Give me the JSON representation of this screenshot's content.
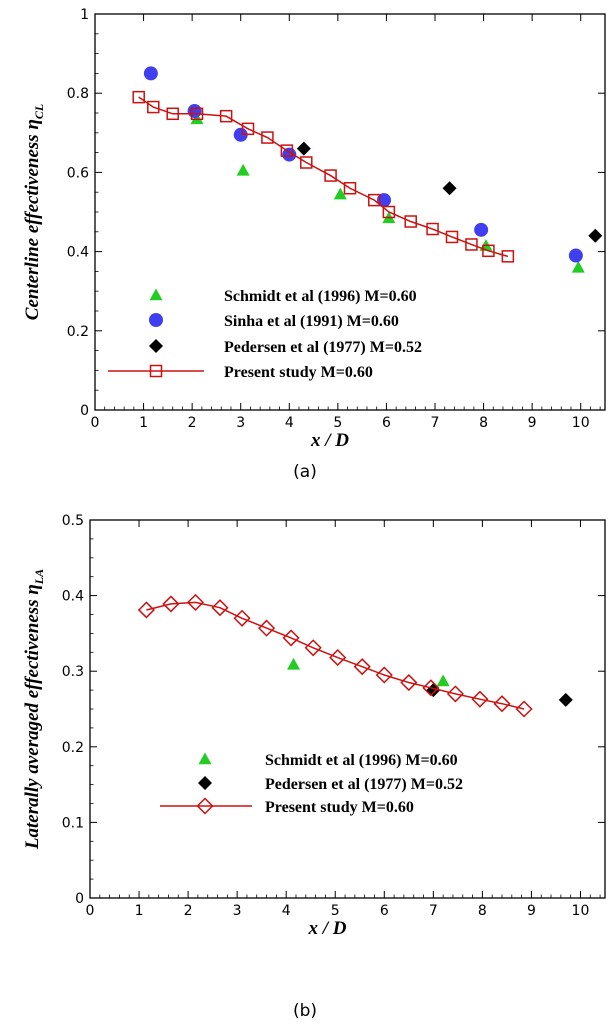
{
  "chart_data": [
    {
      "type": "scatter",
      "panel_label": "(a)",
      "xlabel": "x / D",
      "ylabel": "Centerline effectiveness η",
      "ylabel_sub": "CL",
      "xlim": [
        0,
        10.5
      ],
      "ylim": [
        0,
        1
      ],
      "xticks": [
        "0",
        "1",
        "2",
        "3",
        "4",
        "5",
        "6",
        "7",
        "8",
        "9",
        "10"
      ],
      "yticks": [
        "0",
        "0.2",
        "0.4",
        "0.6",
        "0.8",
        "1"
      ],
      "legend_position": "bottom-center",
      "series": [
        {
          "name": "Schmidt et al (1996) M=0.60",
          "marker": "triangle",
          "color": "#22cc22",
          "points": [
            [
              2.1,
              0.735
            ],
            [
              3.05,
              0.605
            ],
            [
              5.05,
              0.545
            ],
            [
              6.05,
              0.485
            ],
            [
              8.05,
              0.415
            ],
            [
              9.95,
              0.36
            ]
          ]
        },
        {
          "name": "Sinha et al (1991) M=0.60",
          "marker": "circle",
          "color": "#3f3ff0",
          "points": [
            [
              1.15,
              0.85
            ],
            [
              2.05,
              0.755
            ],
            [
              3.0,
              0.695
            ],
            [
              4.0,
              0.645
            ],
            [
              5.95,
              0.53
            ],
            [
              7.95,
              0.455
            ],
            [
              9.9,
              0.39
            ]
          ]
        },
        {
          "name": "Pedersen et al (1977) M=0.52",
          "marker": "diamond",
          "color": "#000000",
          "points": [
            [
              4.3,
              0.66
            ],
            [
              7.3,
              0.56
            ],
            [
              10.3,
              0.44
            ]
          ]
        },
        {
          "name": "Present study M=0.60",
          "marker": "open-square-line",
          "color": "#cc1111",
          "points": [
            [
              0.9,
              0.79
            ],
            [
              1.2,
              0.765
            ],
            [
              1.6,
              0.748
            ],
            [
              2.1,
              0.748
            ],
            [
              2.7,
              0.742
            ],
            [
              3.15,
              0.71
            ],
            [
              3.55,
              0.688
            ],
            [
              3.95,
              0.655
            ],
            [
              4.35,
              0.625
            ],
            [
              4.85,
              0.592
            ],
            [
              5.25,
              0.56
            ],
            [
              5.75,
              0.53
            ],
            [
              6.05,
              0.5
            ],
            [
              6.5,
              0.476
            ],
            [
              6.95,
              0.457
            ],
            [
              7.35,
              0.437
            ],
            [
              7.75,
              0.418
            ],
            [
              8.1,
              0.402
            ],
            [
              8.5,
              0.388
            ]
          ]
        }
      ]
    },
    {
      "type": "scatter",
      "panel_label": "(b)",
      "xlabel": "x / D",
      "ylabel": "Laterally averaged effectiveness η",
      "ylabel_sub": "LA",
      "xlim": [
        0,
        10.5
      ],
      "ylim": [
        0,
        0.5
      ],
      "xticks": [
        "0",
        "1",
        "2",
        "3",
        "4",
        "5",
        "6",
        "7",
        "8",
        "9",
        "10"
      ],
      "yticks": [
        "0",
        "0.1",
        "0.2",
        "0.3",
        "0.4",
        "0.5"
      ],
      "legend_position": "bottom-center",
      "series": [
        {
          "name": "Schmidt et al (1996) M=0.60",
          "marker": "triangle",
          "color": "#22cc22",
          "points": [
            [
              4.15,
              0.309
            ],
            [
              7.2,
              0.287
            ]
          ]
        },
        {
          "name": "Pedersen et al (1977) M=0.52",
          "marker": "diamond",
          "color": "#000000",
          "points": [
            [
              7.0,
              0.275
            ],
            [
              9.7,
              0.262
            ]
          ]
        },
        {
          "name": "Present study M=0.60",
          "marker": "open-diamond-line",
          "color": "#cc1111",
          "points": [
            [
              1.15,
              0.381
            ],
            [
              1.65,
              0.389
            ],
            [
              2.15,
              0.391
            ],
            [
              2.65,
              0.384
            ],
            [
              3.1,
              0.37
            ],
            [
              3.6,
              0.357
            ],
            [
              4.1,
              0.344
            ],
            [
              4.55,
              0.331
            ],
            [
              5.05,
              0.318
            ],
            [
              5.55,
              0.306
            ],
            [
              6.0,
              0.295
            ],
            [
              6.5,
              0.285
            ],
            [
              6.95,
              0.278
            ],
            [
              7.45,
              0.27
            ],
            [
              7.95,
              0.263
            ],
            [
              8.4,
              0.257
            ],
            [
              8.85,
              0.25
            ]
          ]
        }
      ]
    }
  ]
}
